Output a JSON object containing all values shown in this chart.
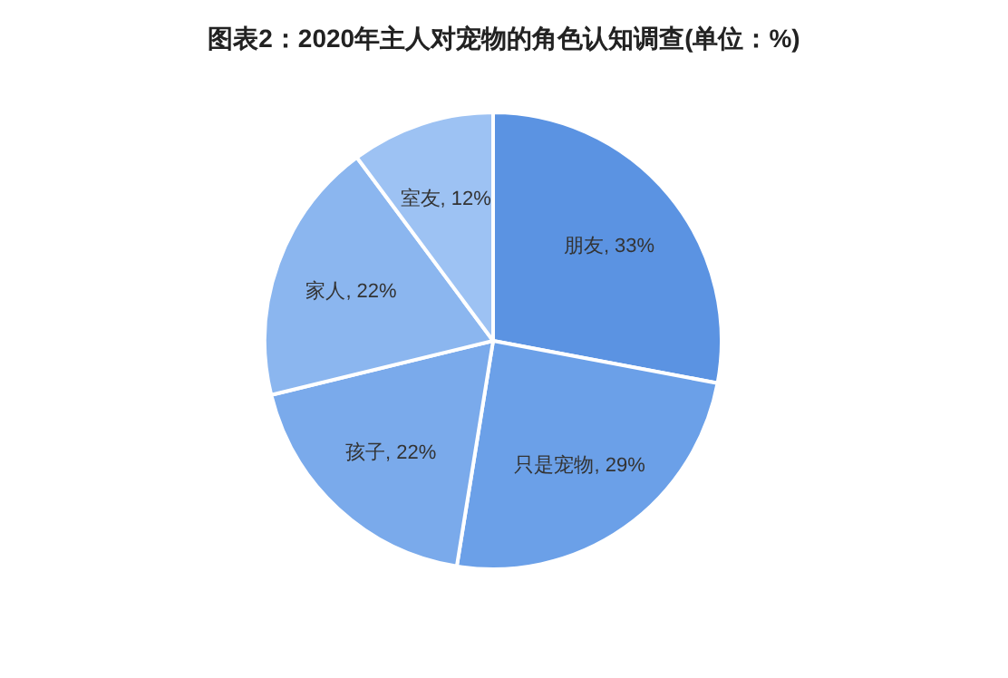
{
  "chart_data": {
    "type": "pie",
    "title": "图表2：2020年主人对宠物的角色认知调查(单位：%)",
    "categories": [
      "朋友",
      "只是宠物",
      "孩子",
      "家人",
      "室友"
    ],
    "values": [
      33,
      29,
      22,
      22,
      12
    ],
    "value_labels": [
      "33%",
      "29%",
      "22%",
      "22%",
      "12%"
    ],
    "colors": [
      "#5b93e2",
      "#6ba0e8",
      "#7aaaeb",
      "#8bb6ef",
      "#9dc2f3"
    ],
    "legend": false
  }
}
